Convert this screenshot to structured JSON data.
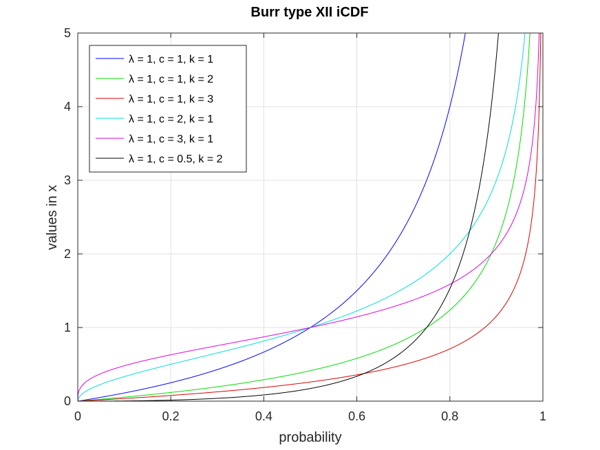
{
  "chart_data": {
    "type": "line",
    "title": "Burr type XII iCDF",
    "xlabel": "probability",
    "ylabel": "values in x",
    "xlim": [
      0,
      1
    ],
    "ylim": [
      0,
      5
    ],
    "xticks": [
      "0",
      "0.2",
      "0.4",
      "0.6",
      "0.8",
      "1"
    ],
    "yticks": [
      "0",
      "1",
      "2",
      "3",
      "4",
      "5"
    ],
    "grid": true,
    "legend_position": "top-left",
    "series": [
      {
        "name": "λ = 1, c = 1, k = 1",
        "lambda": 1,
        "c": 1,
        "k": 1,
        "color": "#0000ff"
      },
      {
        "name": "λ = 1, c = 1, k = 2",
        "lambda": 1,
        "c": 1,
        "k": 2,
        "color": "#00dd00"
      },
      {
        "name": "λ = 1, c = 1, k = 3",
        "lambda": 1,
        "c": 1,
        "k": 3,
        "color": "#dd0000"
      },
      {
        "name": "λ = 1, c = 2, k = 1",
        "lambda": 1,
        "c": 2,
        "k": 1,
        "color": "#00dddd"
      },
      {
        "name": "λ = 1, c = 3, k = 1",
        "lambda": 1,
        "c": 3,
        "k": 1,
        "color": "#dd00dd"
      },
      {
        "name": "λ = 1, c = 0.5, k = 2",
        "lambda": 1,
        "c": 0.5,
        "k": 2,
        "color": "#000000"
      }
    ]
  }
}
